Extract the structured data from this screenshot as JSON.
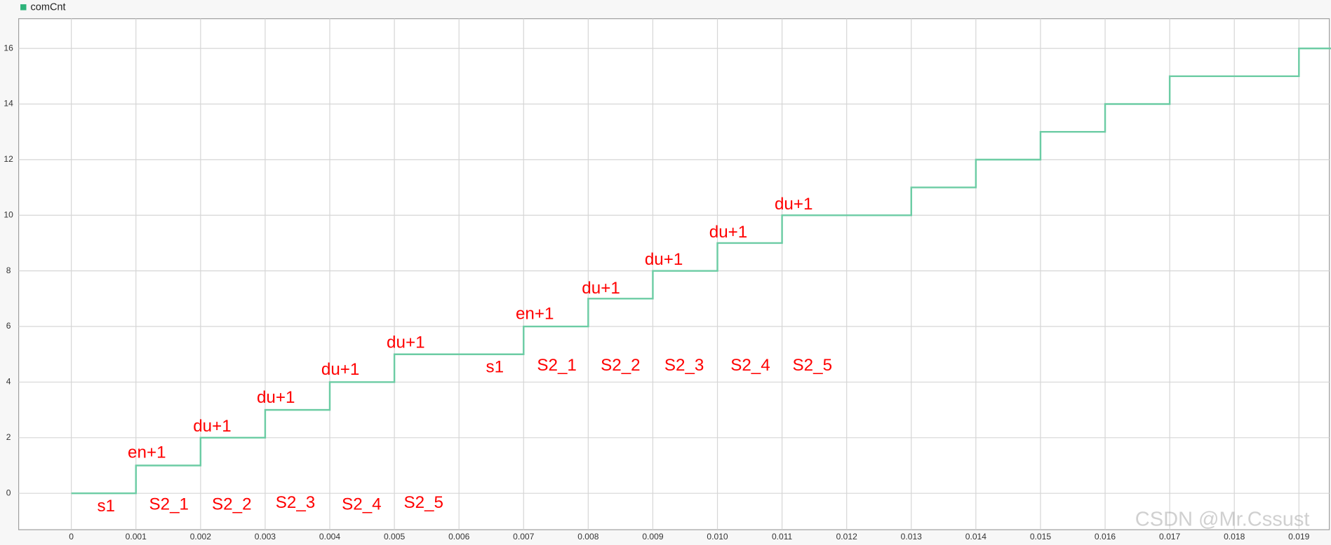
{
  "chart_data": {
    "type": "step",
    "series": [
      {
        "name": "comCnt",
        "color": "#6ccca4",
        "x": [
          0,
          0.001,
          0.002,
          0.003,
          0.004,
          0.005,
          0.007,
          0.008,
          0.009,
          0.01,
          0.011,
          0.013,
          0.014,
          0.015,
          0.016,
          0.017,
          0.019,
          0.0195
        ],
        "values": [
          0,
          1,
          2,
          3,
          4,
          5,
          6,
          7,
          8,
          9,
          10,
          11,
          12,
          13,
          14,
          15,
          16,
          16
        ]
      }
    ],
    "legend_color": "#2db37a",
    "xlim": [
      -0.000815,
      0.01947
    ],
    "ylim": [
      -1.31,
      17.07
    ],
    "xticks": [
      0,
      0.001,
      0.002,
      0.003,
      0.004,
      0.005,
      0.006,
      0.007,
      0.008,
      0.009,
      {
        "value": 0.01,
        "label": "0.010"
      },
      0.011,
      0.012,
      0.013,
      0.014,
      0.015,
      0.016,
      0.017,
      0.018,
      0.019
    ],
    "yticks": [
      0,
      2,
      4,
      6,
      8,
      10,
      12,
      14,
      16
    ],
    "grid": true,
    "annotations": [
      "en+1",
      "du+1",
      "du+1",
      "du+1",
      "du+1",
      "en+1",
      "du+1",
      "du+1",
      "du+1",
      "du+1",
      "s1",
      "S2_1",
      "S2_2",
      "S2_3",
      "S2_4",
      "S2_5",
      "s1",
      "S2_1",
      "S2_2",
      "S2_3",
      "S2_4",
      "S2_5"
    ],
    "annotation_color": "#ff0000",
    "watermark": "CSDN @Mr.Cssust"
  }
}
